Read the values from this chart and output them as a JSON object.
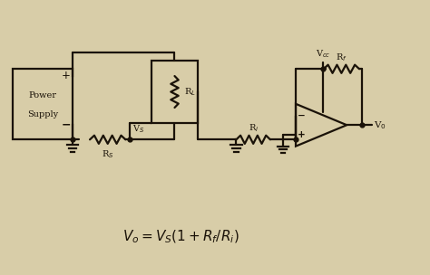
{
  "bg_color": "#d8cda8",
  "line_color": "#1a1208",
  "lw": 1.6,
  "formula_fontsize": 11
}
